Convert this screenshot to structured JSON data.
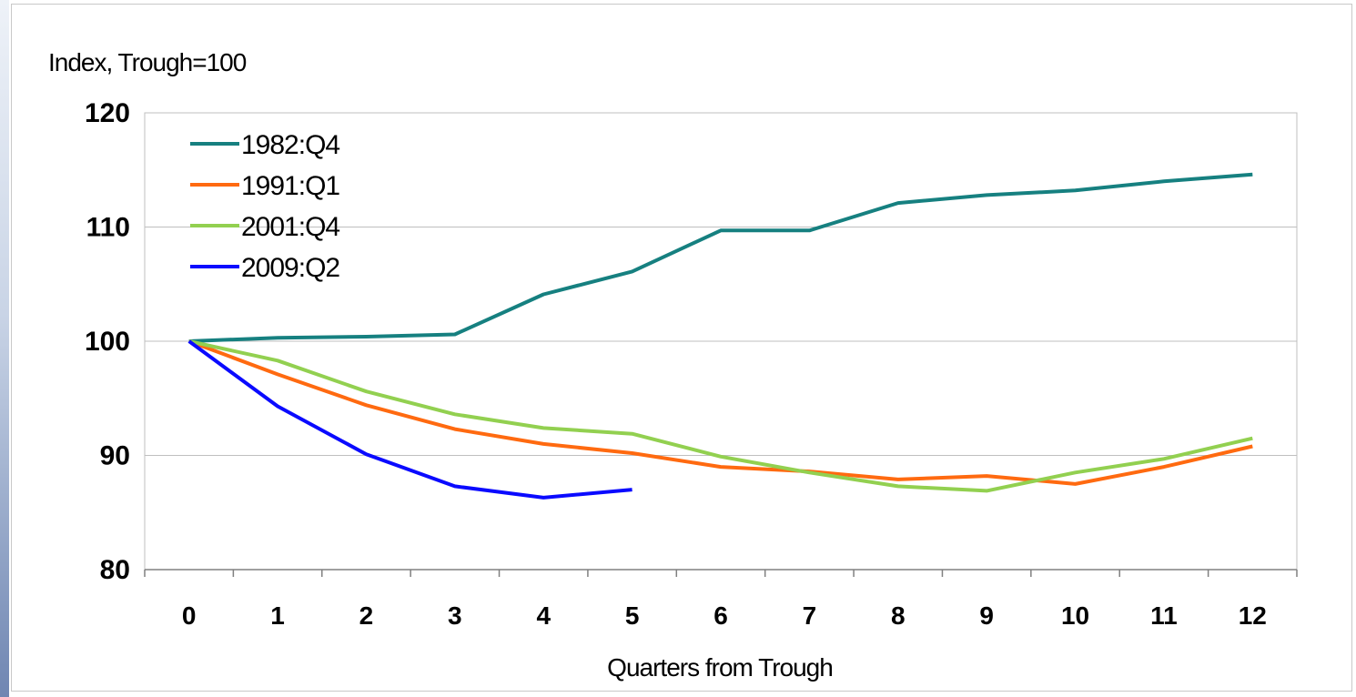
{
  "chart_data": {
    "type": "line",
    "title": "",
    "ylabel": "Index, Trough=100",
    "xlabel": "Quarters from Trough",
    "x": [
      0,
      1,
      2,
      3,
      4,
      5,
      6,
      7,
      8,
      9,
      10,
      11,
      12
    ],
    "x_tick_labels": [
      "0",
      "1",
      "2",
      "3",
      "4",
      "5",
      "6",
      "7",
      "8",
      "9",
      "10",
      "11",
      "12"
    ],
    "y_ticks": [
      80,
      90,
      100,
      110,
      120
    ],
    "y_tick_labels": [
      "80",
      "90",
      "100",
      "110",
      "120"
    ],
    "ylim": [
      80,
      120
    ],
    "grid": "horizontal",
    "legend_position": "top-left",
    "series": [
      {
        "name": "1982:Q4",
        "color": "#168080",
        "values": [
          100,
          100.3,
          100.4,
          100.6,
          104.1,
          106.1,
          109.7,
          109.7,
          112.1,
          112.8,
          113.2,
          114.0,
          114.6
        ]
      },
      {
        "name": "1991:Q1",
        "color": "#ff6a10",
        "values": [
          100,
          97.1,
          94.4,
          92.3,
          91.0,
          90.2,
          89.0,
          88.6,
          87.9,
          88.2,
          87.5,
          89.0,
          90.8
        ]
      },
      {
        "name": "2001:Q4",
        "color": "#92d050",
        "values": [
          100,
          98.3,
          95.6,
          93.6,
          92.4,
          91.9,
          89.9,
          88.5,
          87.3,
          86.9,
          88.5,
          89.7,
          91.5
        ]
      },
      {
        "name": "2009:Q2",
        "color": "#0a0aff",
        "values": [
          100,
          94.3,
          90.1,
          87.3,
          86.3,
          87.0,
          null,
          null,
          null,
          null,
          null,
          null,
          null
        ]
      }
    ]
  }
}
